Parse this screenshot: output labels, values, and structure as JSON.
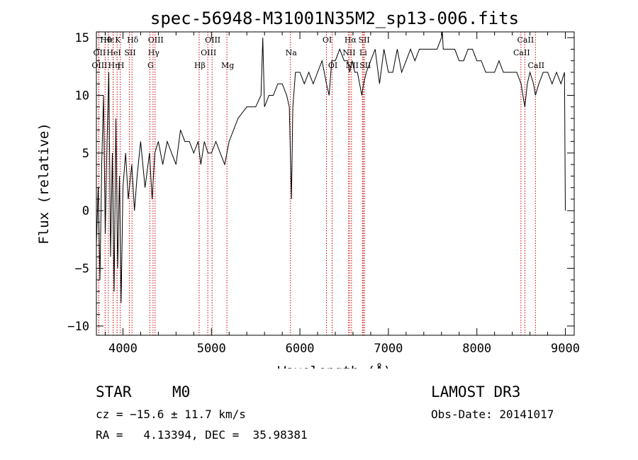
{
  "chart_data": {
    "type": "line",
    "title": "spec-56948-M31001N35M2_sp13-006.fits",
    "xlabel": "Wavelength (Å)",
    "ylabel": "Flux (relative)",
    "xlim": [
      3700,
      9100
    ],
    "ylim": [
      -10.8,
      15.5
    ],
    "xticks": [
      4000,
      5000,
      6000,
      7000,
      8000,
      9000
    ],
    "yticks": [
      -10,
      -5,
      0,
      5,
      10,
      15
    ],
    "series": [
      {
        "name": "spectrum",
        "x": [
          3700,
          3720,
          3740,
          3760,
          3780,
          3800,
          3820,
          3840,
          3860,
          3880,
          3900,
          3920,
          3940,
          3960,
          3980,
          4000,
          4030,
          4060,
          4100,
          4130,
          4160,
          4200,
          4250,
          4300,
          4330,
          4360,
          4400,
          4450,
          4500,
          4550,
          4600,
          4650,
          4700,
          4750,
          4800,
          4850,
          4880,
          4920,
          4960,
          5000,
          5050,
          5100,
          5150,
          5200,
          5250,
          5300,
          5400,
          5500,
          5560,
          5580,
          5600,
          5650,
          5700,
          5750,
          5800,
          5850,
          5880,
          5895,
          5905,
          5920,
          5950,
          6000,
          6050,
          6100,
          6150,
          6200,
          6250,
          6300,
          6330,
          6360,
          6400,
          6450,
          6500,
          6540,
          6563,
          6590,
          6620,
          6650,
          6700,
          6720,
          6750,
          6800,
          6850,
          6900,
          6950,
          7000,
          7050,
          7100,
          7150,
          7200,
          7250,
          7300,
          7350,
          7400,
          7450,
          7500,
          7550,
          7600,
          7610,
          7620,
          7650,
          7700,
          7750,
          7800,
          7850,
          7900,
          7950,
          8000,
          8050,
          8100,
          8150,
          8200,
          8250,
          8300,
          8350,
          8400,
          8450,
          8500,
          8520,
          8542,
          8570,
          8600,
          8640,
          8662,
          8700,
          8750,
          8800,
          8850,
          8900,
          8950,
          8990,
          9000
        ],
        "values": [
          -3,
          2,
          -6,
          4,
          10,
          -2,
          6,
          12,
          -4,
          5,
          -7,
          8,
          -5,
          3,
          -8,
          2,
          5,
          1,
          4,
          0,
          3,
          6,
          2,
          5,
          1,
          5,
          6,
          4,
          6,
          5,
          4,
          7,
          6,
          6,
          5,
          6,
          4,
          6,
          5,
          5,
          6,
          5,
          4,
          6,
          7,
          8,
          9,
          9,
          10,
          15,
          9,
          10,
          10,
          11,
          11,
          10,
          9,
          4,
          1,
          9,
          12,
          12,
          11,
          12,
          11,
          12,
          13,
          11,
          10,
          13,
          13,
          14,
          13,
          13,
          12,
          13,
          12,
          12,
          10,
          11,
          12,
          13,
          14,
          11,
          14,
          12,
          12,
          14,
          12,
          13,
          14,
          13,
          14,
          14,
          14,
          14,
          14,
          15,
          15.5,
          14,
          14,
          14,
          14,
          13,
          13,
          14,
          14,
          13,
          13,
          12,
          12,
          12,
          13,
          12,
          12,
          12,
          12,
          11,
          10,
          9,
          11,
          12,
          11,
          10,
          11,
          12,
          12,
          11,
          12,
          11,
          12,
          0
        ]
      }
    ],
    "line_markers": [
      {
        "name": "Hθ",
        "wave": 3798,
        "row": 1
      },
      {
        "name": "OII",
        "wave": 3727,
        "row": 2
      },
      {
        "name": "OIII",
        "wave": 3727,
        "row": 3
      },
      {
        "name": "Hε",
        "wave": 3835,
        "row": 1
      },
      {
        "name": "K",
        "wave": 3934,
        "row": 1
      },
      {
        "name": "HeI",
        "wave": 3889,
        "row": 2
      },
      {
        "name": "Hη",
        "wave": 3889,
        "row": 3
      },
      {
        "name": "H",
        "wave": 3969,
        "row": 3
      },
      {
        "name": "SII",
        "wave": 4072,
        "row": 2
      },
      {
        "name": "Hδ",
        "wave": 4102,
        "row": 1
      },
      {
        "name": "OIII",
        "wave": 4363,
        "row": 1
      },
      {
        "name": "Hγ",
        "wave": 4340,
        "row": 2
      },
      {
        "name": "G",
        "wave": 4304,
        "row": 3
      },
      {
        "name": "Hβ",
        "wave": 4861,
        "row": 3
      },
      {
        "name": "OIII",
        "wave": 5007,
        "row": 1
      },
      {
        "name": "OIII",
        "wave": 4959,
        "row": 2
      },
      {
        "name": "Mg",
        "wave": 5175,
        "row": 3
      },
      {
        "name": "Na",
        "wave": 5893,
        "row": 2
      },
      {
        "name": "OI",
        "wave": 6300,
        "row": 1
      },
      {
        "name": "OI",
        "wave": 6364,
        "row": 3
      },
      {
        "name": "Hα",
        "wave": 6563,
        "row": 1
      },
      {
        "name": "SII",
        "wave": 6717,
        "row": 1
      },
      {
        "name": "NII",
        "wave": 6548,
        "row": 2
      },
      {
        "name": "Li",
        "wave": 6707,
        "row": 2
      },
      {
        "name": "NII",
        "wave": 6583,
        "row": 3
      },
      {
        "name": "SII",
        "wave": 6731,
        "row": 3
      },
      {
        "name": "CaII",
        "wave": 8542,
        "row": 1
      },
      {
        "name": "CaII",
        "wave": 8498,
        "row": 2
      },
      {
        "name": "CaII",
        "wave": 8662,
        "row": 3
      }
    ]
  },
  "info": {
    "class": "STAR",
    "subclass": "M0",
    "survey": "LAMOST DR3",
    "cz": "cz = −15.6 ± 11.7 km/s",
    "obs_date": "Obs-Date: 20141017",
    "radec": "RA =   4.13394, DEC =  35.98381"
  },
  "colors": {
    "axis": "#000000",
    "marker": "#cc0000",
    "spectrum": "#000000"
  }
}
